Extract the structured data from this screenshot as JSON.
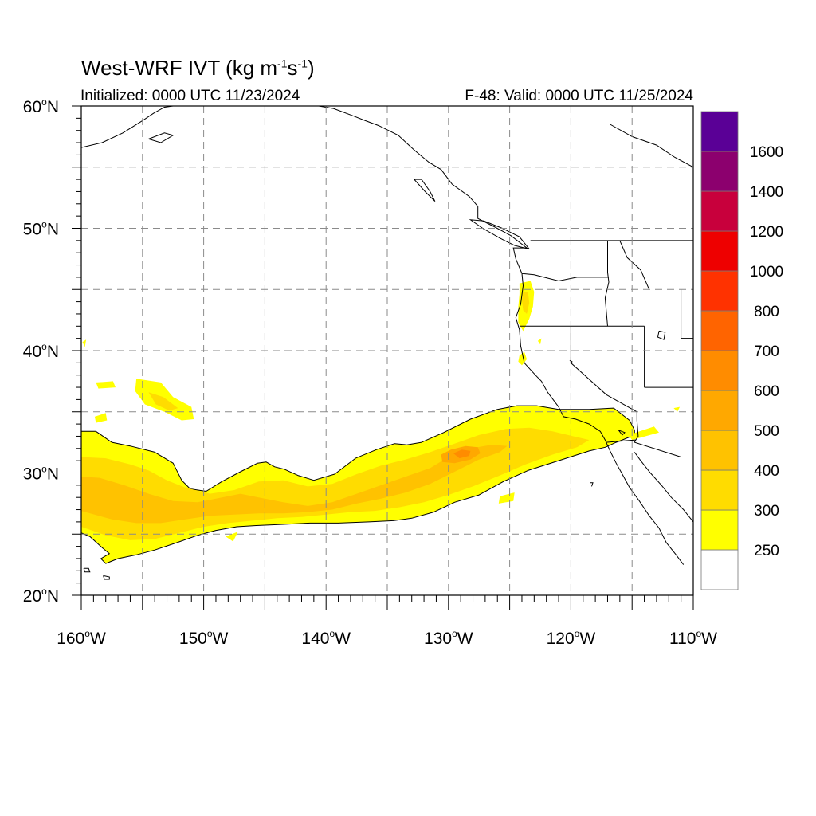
{
  "title": {
    "main": "West-WRF IVT (kg m",
    "exp1": "-1",
    "mid": "s",
    "exp2": "-1",
    "end": ")"
  },
  "subtitle_left": "Initialized: 0000 UTC 11/23/2024",
  "subtitle_right": "F-48: Valid: 0000 UTC 11/25/2024",
  "axes": {
    "lon_ticks": [
      {
        "value": -160,
        "label": "160°W"
      },
      {
        "value": -150,
        "label": "150°W"
      },
      {
        "value": -140,
        "label": "140°W"
      },
      {
        "value": -130,
        "label": "130°W"
      },
      {
        "value": -120,
        "label": "120°W"
      },
      {
        "value": -110,
        "label": "110°W"
      }
    ],
    "lat_ticks": [
      {
        "value": 20,
        "label": "20°N"
      },
      {
        "value": 30,
        "label": "30°N"
      },
      {
        "value": 40,
        "label": "40°N"
      },
      {
        "value": 50,
        "label": "50°N"
      },
      {
        "value": 60,
        "label": "60°N"
      }
    ],
    "lon_range": [
      -160,
      -110
    ],
    "lat_range": [
      20,
      60
    ],
    "grid_interval_deg": 5,
    "grid": true
  },
  "colorbar": {
    "labels": [
      "250",
      "300",
      "400",
      "500",
      "600",
      "700",
      "800",
      "1000",
      "1200",
      "1400",
      "1600"
    ],
    "colors": [
      "#ffffff",
      "#ffff00",
      "#ffdc00",
      "#ffc200",
      "#ffa800",
      "#ff8c00",
      "#ff6400",
      "#ff3200",
      "#ee0000",
      "#c8003c",
      "#8c006e",
      "#5a0096"
    ]
  },
  "chart_data": {
    "type": "heatmap",
    "variable": "West-WRF IVT (kg m-1 s-1)",
    "xlim": [
      -160,
      -110
    ],
    "ylim": [
      20,
      60
    ],
    "levels": [
      250,
      300,
      400,
      500,
      600,
      700,
      800,
      1000,
      1200,
      1400,
      1600
    ],
    "max_region": {
      "lon": -129,
      "lat": 31.5,
      "approx_value": 600
    },
    "features": [
      {
        "name": "atmospheric river",
        "lon_range": [
          -160,
          -116
        ],
        "lat_range": [
          22.5,
          35.5
        ],
        "ivt_range": [
          250,
          600
        ]
      },
      {
        "name": "oregon coast band",
        "lon_range": [
          -124.2,
          -123
        ],
        "lat_range": [
          41.5,
          45.5
        ],
        "ivt_range": [
          250,
          400
        ]
      }
    ]
  }
}
